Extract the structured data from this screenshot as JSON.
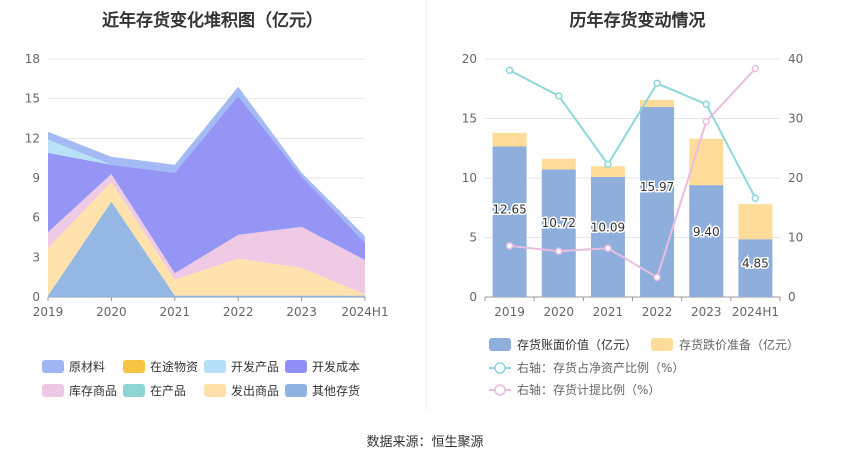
{
  "charts": {
    "left": {
      "title": "近年存货变化堆积图（亿元）",
      "chart_data": {
        "type": "area",
        "stacked": true,
        "categories": [
          "2019",
          "2020",
          "2021",
          "2022",
          "2023",
          "2024H1"
        ],
        "ylim": [
          0,
          18
        ],
        "yticks": [
          "0",
          "3",
          "6",
          "9",
          "12",
          "15",
          "18"
        ],
        "series": [
          {
            "name": "其他存货",
            "color": "#8eb3e2",
            "values": [
              0.1,
              7.2,
              0.1,
              0.1,
              0.1,
              0.1
            ]
          },
          {
            "name": "发出商品",
            "color": "#ffe0a8",
            "values": [
              3.6,
              1.5,
              1.2,
              2.8,
              2.1,
              0.1
            ]
          },
          {
            "name": "在产品",
            "color": "#8dd4d4",
            "values": [
              0.0,
              0.0,
              0.0,
              0.0,
              0.0,
              0.0
            ]
          },
          {
            "name": "库存商品",
            "color": "#eec7e4",
            "values": [
              1.2,
              0.6,
              0.5,
              1.8,
              3.1,
              2.6
            ]
          },
          {
            "name": "开发成本",
            "color": "#8f8ff5",
            "values": [
              6.0,
              0.7,
              7.6,
              10.5,
              3.8,
              1.3
            ]
          },
          {
            "name": "开发产品",
            "color": "#b5e0f8",
            "values": [
              1.0,
              0.0,
              0.0,
              0.0,
              0.0,
              0.0
            ]
          },
          {
            "name": "在途物资",
            "color": "#f7c542",
            "values": [
              0.0,
              0.0,
              0.0,
              0.0,
              0.0,
              0.0
            ]
          },
          {
            "name": "原材料",
            "color": "#9fb6f4",
            "values": [
              0.6,
              0.6,
              0.6,
              0.7,
              0.3,
              0.5
            ]
          }
        ],
        "legend": [
          {
            "name": "原材料",
            "color": "#9fb6f4"
          },
          {
            "name": "在途物资",
            "color": "#f7c542"
          },
          {
            "name": "开发产品",
            "color": "#b5e0f8"
          },
          {
            "name": "开发成本",
            "color": "#8f8ff5"
          },
          {
            "name": "库存商品",
            "color": "#eec7e4"
          },
          {
            "name": "在产品",
            "color": "#8dd4d4"
          },
          {
            "name": "发出商品",
            "color": "#ffe0a8"
          },
          {
            "name": "其他存货",
            "color": "#8eb3e2"
          }
        ]
      }
    },
    "right": {
      "title": "历年存货变动情况",
      "chart_data": {
        "type": "bar",
        "stacked": true,
        "categories": [
          "2019",
          "2020",
          "2021",
          "2022",
          "2023",
          "2024H1"
        ],
        "ylim_left": [
          0,
          20
        ],
        "ylim_right": [
          0,
          40
        ],
        "yticks_left": [
          "0",
          "5",
          "10",
          "15",
          "20"
        ],
        "yticks_right": [
          "0",
          "10",
          "20",
          "30",
          "40"
        ],
        "series": [
          {
            "name": "存货账面价值（亿元）",
            "color": "#8eaedc",
            "values": [
              12.65,
              10.72,
              10.09,
              15.97,
              9.4,
              4.85
            ],
            "labels": [
              "12.65",
              "10.72",
              "10.09",
              "15.97",
              "9.40",
              "4.85"
            ]
          },
          {
            "name": "存货跌价准备（亿元）",
            "color": "#ffdc9a",
            "values": [
              1.15,
              0.9,
              0.9,
              0.6,
              3.9,
              2.95
            ]
          }
        ],
        "lines": [
          {
            "name": "右轴：存货占净资产比例（%）",
            "color": "#8ed7dc",
            "values": [
              38.1,
              33.8,
              22.3,
              35.9,
              32.4,
              16.6
            ]
          },
          {
            "name": "右轴：存货计提比例（%）",
            "color": "#e9bde0",
            "values": [
              8.6,
              7.7,
              8.2,
              3.3,
              29.5,
              38.4
            ]
          }
        ]
      }
    }
  },
  "footer": {
    "source": "数据来源：恒生聚源"
  }
}
